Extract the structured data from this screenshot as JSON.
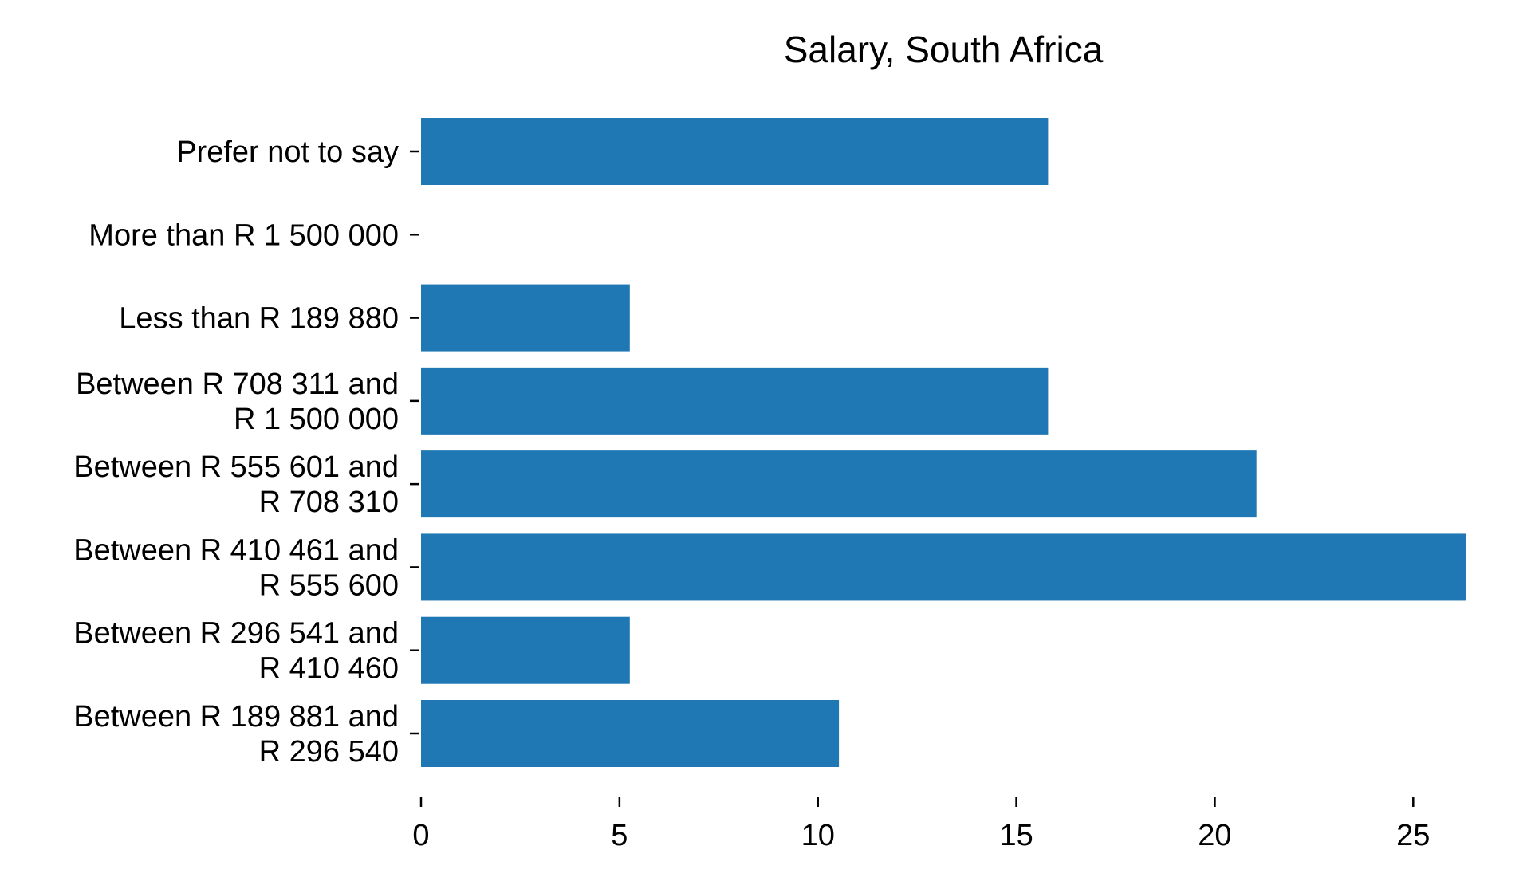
{
  "chart_data": {
    "type": "bar",
    "orientation": "horizontal",
    "title": "Salary, South Africa",
    "xlabel": "",
    "ylabel": "",
    "categories": [
      [
        "Prefer not to say"
      ],
      [
        "More than R 1 500 000"
      ],
      [
        "Less than R 189 880"
      ],
      [
        "Between R 708 311 and",
        "R 1 500 000"
      ],
      [
        "Between R 555 601 and",
        "R 708 310"
      ],
      [
        "Between R 410 461 and",
        "R 555 600"
      ],
      [
        "Between R 296 541 and",
        "R 410 460"
      ],
      [
        "Between R 189 881 and",
        "R 296 540"
      ]
    ],
    "values": [
      15.8,
      0,
      5.26,
      15.8,
      21.05,
      26.32,
      5.26,
      10.53
    ],
    "xlim": [
      0,
      26.32
    ],
    "xticks": [
      "0",
      "5",
      "10",
      "15",
      "20",
      "25"
    ],
    "grid": false,
    "legend": "none",
    "bar_color": "#1f77b4"
  }
}
